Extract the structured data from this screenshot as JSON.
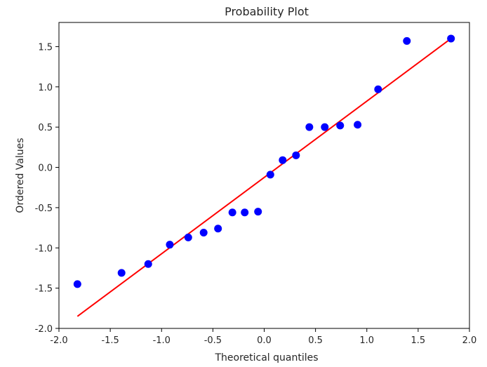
{
  "chart_data": {
    "type": "scatter",
    "title": "Probability Plot",
    "xlabel": "Theoretical quantiles",
    "ylabel": "Ordered Values",
    "xlim": [
      -2.0,
      2.0
    ],
    "ylim": [
      -2.0,
      1.8
    ],
    "xticks": [
      -2.0,
      -1.5,
      -1.0,
      -0.5,
      0.0,
      0.5,
      1.0,
      1.5,
      2.0
    ],
    "yticks": [
      -2.0,
      -1.5,
      -1.0,
      -0.5,
      0.0,
      0.5,
      1.0,
      1.5
    ],
    "grid": false,
    "series": [
      {
        "color": "#0000ff",
        "x": [
          -1.82,
          -1.39,
          -1.13,
          -0.92,
          -0.74,
          -0.59,
          -0.45,
          -0.31,
          -0.19,
          -0.06,
          0.06,
          0.18,
          0.31,
          0.44,
          0.59,
          0.74,
          0.91,
          1.11,
          1.39,
          1.82
        ],
        "y": [
          -1.45,
          -1.31,
          -1.2,
          -0.96,
          -0.87,
          -0.81,
          -0.76,
          -0.56,
          -0.56,
          -0.55,
          -0.09,
          0.09,
          0.15,
          0.5,
          0.5,
          0.52,
          0.53,
          0.97,
          1.57,
          1.6
        ]
      }
    ],
    "fit_line": {
      "color": "#ff0000",
      "x": [
        -1.82,
        1.82
      ],
      "y": [
        -1.85,
        1.6
      ]
    }
  }
}
